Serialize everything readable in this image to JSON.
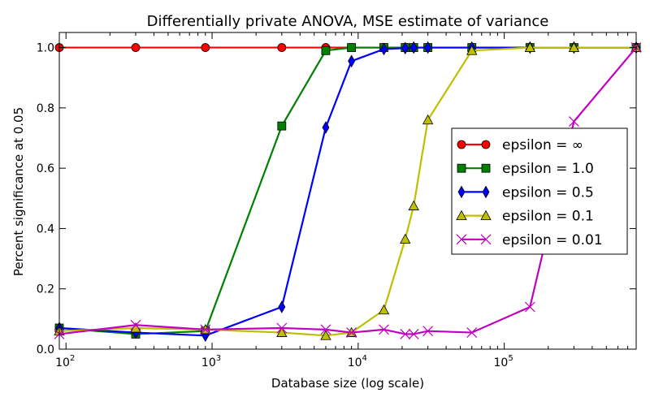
{
  "chart_data": {
    "type": "line",
    "title": "Differentially private ANOVA, MSE estimate of variance",
    "xlabel": "Database size (log scale)",
    "ylabel": "Percent significance at 0.05",
    "xscale": "log",
    "xlim": [
      90,
      800000
    ],
    "ylim": [
      0,
      1.05
    ],
    "x_ticks": [
      {
        "value": 100,
        "base": "10",
        "exp": "2"
      },
      {
        "value": 1000,
        "base": "10",
        "exp": "3"
      },
      {
        "value": 10000,
        "base": "10",
        "exp": "4"
      },
      {
        "value": 100000,
        "base": "10",
        "exp": "5"
      }
    ],
    "y_ticks": [
      {
        "value": 0.0,
        "label": "0.0"
      },
      {
        "value": 0.2,
        "label": "0.2"
      },
      {
        "value": 0.4,
        "label": "0.4"
      },
      {
        "value": 0.6,
        "label": "0.6"
      },
      {
        "value": 0.8,
        "label": "0.8"
      },
      {
        "value": 1.0,
        "label": "1.0"
      }
    ],
    "grid": false,
    "legend_position": "center-right",
    "series": [
      {
        "name": "epsilon = ∞",
        "color": "#ff0000",
        "marker": "circle",
        "x": [
          90,
          300,
          900,
          3000,
          6000,
          9000,
          15000,
          21000,
          24000,
          30000,
          60000,
          150000,
          300000,
          800000
        ],
        "y": [
          1.0,
          1.0,
          1.0,
          1.0,
          1.0,
          1.0,
          1.0,
          1.0,
          1.0,
          1.0,
          1.0,
          1.0,
          1.0,
          1.0
        ]
      },
      {
        "name": "epsilon = 1.0",
        "color": "#008000",
        "marker": "square",
        "x": [
          90,
          300,
          900,
          3000,
          6000,
          9000,
          15000,
          21000,
          24000,
          30000,
          60000,
          150000,
          300000,
          800000
        ],
        "y": [
          0.07,
          0.05,
          0.06,
          0.74,
          0.99,
          1.0,
          1.0,
          1.0,
          1.0,
          1.0,
          1.0,
          1.0,
          1.0,
          1.0
        ]
      },
      {
        "name": "epsilon = 0.5",
        "color": "#0000ff",
        "marker": "diamond",
        "x": [
          90,
          300,
          900,
          3000,
          6000,
          9000,
          15000,
          21000,
          24000,
          30000,
          60000,
          150000,
          300000,
          800000
        ],
        "y": [
          0.07,
          0.055,
          0.045,
          0.14,
          0.735,
          0.955,
          0.995,
          0.998,
          1.0,
          1.0,
          1.0,
          1.0,
          1.0,
          1.0
        ]
      },
      {
        "name": "epsilon = 0.1",
        "color": "#bfbf00",
        "marker": "triangle",
        "x": [
          90,
          300,
          900,
          3000,
          6000,
          9000,
          15000,
          21000,
          24000,
          30000,
          60000,
          150000,
          300000,
          800000
        ],
        "y": [
          0.06,
          0.07,
          0.065,
          0.055,
          0.045,
          0.055,
          0.13,
          0.365,
          0.475,
          0.76,
          0.99,
          1.0,
          1.0,
          1.0
        ]
      },
      {
        "name": "epsilon = 0.01",
        "color": "#bf00bf",
        "marker": "x",
        "x": [
          90,
          300,
          900,
          3000,
          6000,
          9000,
          15000,
          21000,
          24000,
          30000,
          60000,
          150000,
          300000,
          800000
        ],
        "y": [
          0.05,
          0.08,
          0.065,
          0.07,
          0.065,
          0.055,
          0.065,
          0.05,
          0.05,
          0.06,
          0.055,
          0.14,
          0.755,
          1.0
        ]
      }
    ]
  }
}
